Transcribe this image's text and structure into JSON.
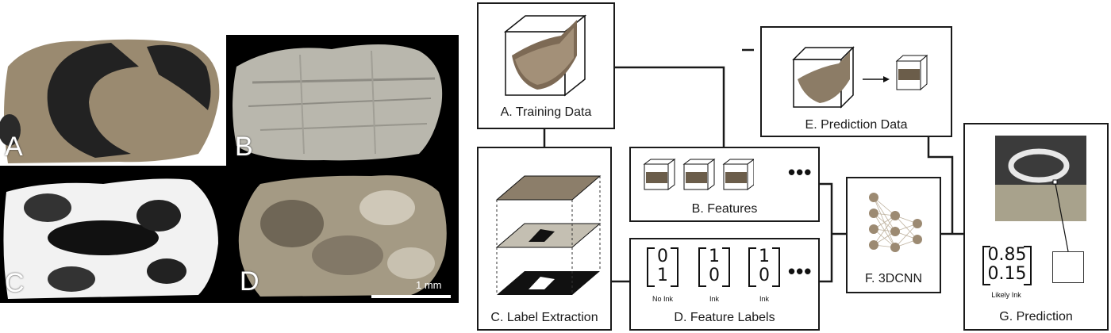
{
  "photos": {
    "panel_labels": [
      "A",
      "B",
      "C",
      "D"
    ],
    "scale_bar": "1 mm"
  },
  "boxes": {
    "training_data": "A. Training Data",
    "features": "B. Features",
    "label_extraction": "C. Label Extraction",
    "feature_labels": "D. Feature Labels",
    "prediction_data": "E. Prediction Data",
    "cnn": "F. 3DCNN",
    "prediction": "G. Prediction"
  },
  "feature_labels": {
    "vectors": [
      {
        "top": "0",
        "bottom": "1",
        "label": "No Ink"
      },
      {
        "top": "1",
        "bottom": "0",
        "label": "Ink"
      },
      {
        "top": "1",
        "bottom": "0",
        "label": "Ink"
      }
    ],
    "ellipsis": "•••"
  },
  "features": {
    "ellipsis": "•••"
  },
  "prediction": {
    "top": "0.85",
    "bottom": "0.15",
    "label": "Likely Ink"
  }
}
